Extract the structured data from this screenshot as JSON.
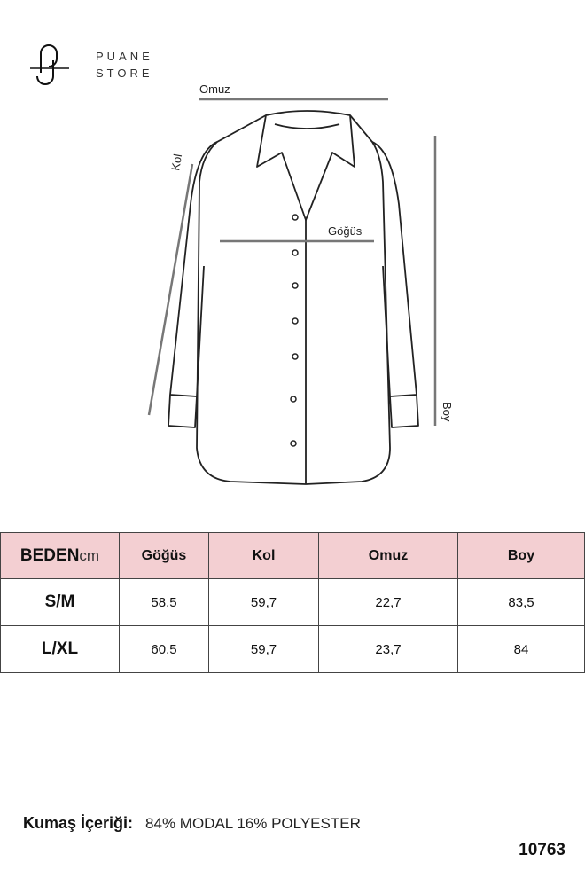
{
  "brand": {
    "line1": "PUANE",
    "line2": "STORE"
  },
  "diagram": {
    "shoulder_label": "Omuz",
    "sleeve_label": "Kol",
    "chest_label": "Göğüs",
    "length_label": "Boy"
  },
  "table": {
    "header": {
      "size_label": "BEDEN",
      "unit": "cm",
      "columns": [
        "Göğüs",
        "Kol",
        "Omuz",
        "Boy"
      ]
    },
    "rows": [
      {
        "size": "S/M",
        "values": [
          "58,5",
          "59,7",
          "22,7",
          "83,5"
        ]
      },
      {
        "size": "L/XL",
        "values": [
          "60,5",
          "59,7",
          "23,7",
          "84"
        ]
      }
    ],
    "header_color": "#f3cfd2"
  },
  "fabric": {
    "label": "Kumaş İçeriği:",
    "value": "84% MODAL 16% POLYESTER"
  },
  "product_code": "10763"
}
